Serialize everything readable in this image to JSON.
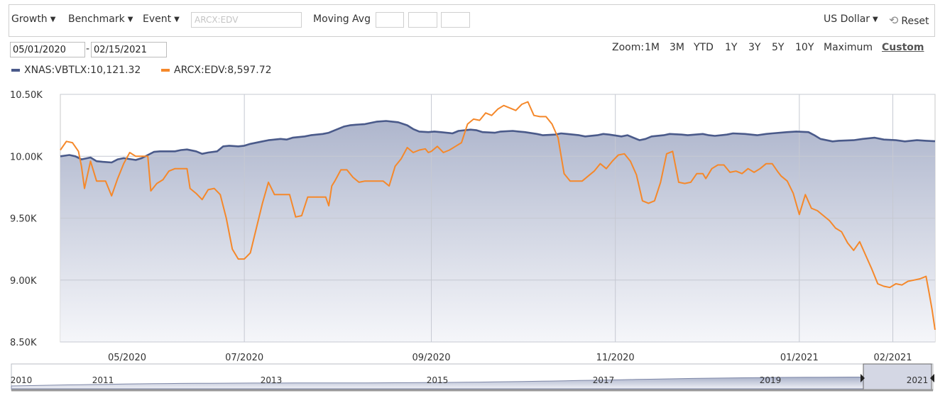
{
  "toolbar": {
    "growth": "Growth",
    "benchmark": "Benchmark",
    "event": "Event",
    "symbol_placeholder": "ARCX:EDV",
    "moving_avg": "Moving Avg",
    "currency": "US Dollar",
    "reset": "Reset"
  },
  "date_range": {
    "start": "05/01/2020",
    "end": "02/15/2021"
  },
  "zoom": {
    "label": "Zoom:",
    "options": [
      "1M",
      "3M",
      "YTD",
      "1Y",
      "3Y",
      "5Y",
      "10Y",
      "Maximum",
      "Custom"
    ],
    "active": "Custom"
  },
  "legend": [
    {
      "label": "XNAS:VBTLX:10,121.32",
      "color": "#4a5a8a"
    },
    {
      "label": "ARCX:EDV:8,597.72",
      "color": "#f5882a"
    }
  ],
  "navigator": {
    "years": [
      "2010",
      "2011",
      "2013",
      "2015",
      "2017",
      "2019",
      "2021"
    ]
  },
  "chart_data": {
    "type": "line",
    "x_start": "2020-05-01",
    "x_end": "2021-02-15",
    "xtick_labels": [
      {
        "date": "2020-05-01",
        "label": "05/2020"
      },
      {
        "date": "2020-07-01",
        "label": "07/2020"
      },
      {
        "date": "2020-09-01",
        "label": "09/2020"
      },
      {
        "date": "2020-11-01",
        "label": "11/2020"
      },
      {
        "date": "2021-01-01",
        "label": "01/2021"
      },
      {
        "date": "2021-02-01",
        "label": "02/2021"
      }
    ],
    "ylim": [
      8500,
      10500
    ],
    "yticks": [
      8500,
      9000,
      9500,
      10000,
      10500
    ],
    "ytick_labels": [
      "8.50K",
      "9.00K",
      "9.50K",
      "10.00K",
      "10.50K"
    ],
    "grid": true,
    "series": [
      {
        "name": "XNAS:VBTLX",
        "color": "#4a5a8a",
        "fill": true,
        "points": [
          [
            "2020-05-01",
            10000
          ],
          [
            "2020-05-04",
            10010
          ],
          [
            "2020-05-06",
            10000
          ],
          [
            "2020-05-08",
            9975
          ],
          [
            "2020-05-11",
            9990
          ],
          [
            "2020-05-13",
            9960
          ],
          [
            "2020-05-15",
            9955
          ],
          [
            "2020-05-18",
            9950
          ],
          [
            "2020-05-20",
            9975
          ],
          [
            "2020-05-22",
            9985
          ],
          [
            "2020-05-26",
            9970
          ],
          [
            "2020-05-28",
            9985
          ],
          [
            "2020-06-01",
            10035
          ],
          [
            "2020-06-03",
            10040
          ],
          [
            "2020-06-05",
            10040
          ],
          [
            "2020-06-08",
            10040
          ],
          [
            "2020-06-10",
            10050
          ],
          [
            "2020-06-12",
            10055
          ],
          [
            "2020-06-15",
            10040
          ],
          [
            "2020-06-17",
            10020
          ],
          [
            "2020-06-19",
            10030
          ],
          [
            "2020-06-22",
            10040
          ],
          [
            "2020-06-24",
            10080
          ],
          [
            "2020-06-26",
            10085
          ],
          [
            "2020-06-29",
            10080
          ],
          [
            "2020-07-01",
            10085
          ],
          [
            "2020-07-03",
            10100
          ],
          [
            "2020-07-07",
            10120
          ],
          [
            "2020-07-09",
            10130
          ],
          [
            "2020-07-13",
            10140
          ],
          [
            "2020-07-15",
            10135
          ],
          [
            "2020-07-17",
            10150
          ],
          [
            "2020-07-21",
            10160
          ],
          [
            "2020-07-23",
            10170
          ],
          [
            "2020-07-27",
            10180
          ],
          [
            "2020-07-29",
            10190
          ],
          [
            "2020-07-31",
            10210
          ],
          [
            "2020-08-03",
            10240
          ],
          [
            "2020-08-05",
            10250
          ],
          [
            "2020-08-07",
            10255
          ],
          [
            "2020-08-10",
            10260
          ],
          [
            "2020-08-12",
            10270
          ],
          [
            "2020-08-14",
            10280
          ],
          [
            "2020-08-17",
            10285
          ],
          [
            "2020-08-19",
            10280
          ],
          [
            "2020-08-21",
            10275
          ],
          [
            "2020-08-24",
            10250
          ],
          [
            "2020-08-26",
            10220
          ],
          [
            "2020-08-28",
            10200
          ],
          [
            "2020-08-31",
            10195
          ],
          [
            "2020-09-02",
            10200
          ],
          [
            "2020-09-04",
            10195
          ],
          [
            "2020-09-08",
            10185
          ],
          [
            "2020-09-10",
            10205
          ],
          [
            "2020-09-14",
            10215
          ],
          [
            "2020-09-16",
            10210
          ],
          [
            "2020-09-18",
            10195
          ],
          [
            "2020-09-22",
            10190
          ],
          [
            "2020-09-24",
            10200
          ],
          [
            "2020-09-28",
            10205
          ],
          [
            "2020-09-30",
            10200
          ],
          [
            "2020-10-02",
            10195
          ],
          [
            "2020-10-06",
            10180
          ],
          [
            "2020-10-08",
            10170
          ],
          [
            "2020-10-12",
            10175
          ],
          [
            "2020-10-14",
            10185
          ],
          [
            "2020-10-16",
            10180
          ],
          [
            "2020-10-20",
            10170
          ],
          [
            "2020-10-22",
            10160
          ],
          [
            "2020-10-26",
            10170
          ],
          [
            "2020-10-28",
            10180
          ],
          [
            "2020-10-30",
            10175
          ],
          [
            "2020-11-03",
            10160
          ],
          [
            "2020-11-05",
            10170
          ],
          [
            "2020-11-09",
            10130
          ],
          [
            "2020-11-11",
            10140
          ],
          [
            "2020-11-13",
            10160
          ],
          [
            "2020-11-17",
            10170
          ],
          [
            "2020-11-19",
            10180
          ],
          [
            "2020-11-23",
            10175
          ],
          [
            "2020-11-25",
            10170
          ],
          [
            "2020-11-30",
            10180
          ],
          [
            "2020-12-02",
            10170
          ],
          [
            "2020-12-04",
            10165
          ],
          [
            "2020-12-08",
            10175
          ],
          [
            "2020-12-10",
            10185
          ],
          [
            "2020-12-14",
            10180
          ],
          [
            "2020-12-16",
            10175
          ],
          [
            "2020-12-18",
            10170
          ],
          [
            "2020-12-21",
            10180
          ],
          [
            "2020-12-23",
            10185
          ],
          [
            "2020-12-28",
            10195
          ],
          [
            "2020-12-31",
            10200
          ],
          [
            "2021-01-04",
            10195
          ],
          [
            "2021-01-06",
            10170
          ],
          [
            "2021-01-08",
            10140
          ],
          [
            "2021-01-12",
            10120
          ],
          [
            "2021-01-14",
            10125
          ],
          [
            "2021-01-19",
            10130
          ],
          [
            "2021-01-22",
            10140
          ],
          [
            "2021-01-26",
            10150
          ],
          [
            "2021-01-29",
            10135
          ],
          [
            "2021-02-02",
            10130
          ],
          [
            "2021-02-05",
            10120
          ],
          [
            "2021-02-09",
            10130
          ],
          [
            "2021-02-12",
            10125
          ],
          [
            "2021-02-15",
            10121.32
          ]
        ]
      },
      {
        "name": "ARCX:EDV",
        "color": "#f5882a",
        "fill": false,
        "points": [
          [
            "2020-05-01",
            10050
          ],
          [
            "2020-05-03",
            10120
          ],
          [
            "2020-05-05",
            10110
          ],
          [
            "2020-05-07",
            10040
          ],
          [
            "2020-05-08",
            9920
          ],
          [
            "2020-05-09",
            9740
          ],
          [
            "2020-05-11",
            9960
          ],
          [
            "2020-05-13",
            9800
          ],
          [
            "2020-05-16",
            9800
          ],
          [
            "2020-05-18",
            9680
          ],
          [
            "2020-05-20",
            9820
          ],
          [
            "2020-05-22",
            9940
          ],
          [
            "2020-05-24",
            10030
          ],
          [
            "2020-05-26",
            10000
          ],
          [
            "2020-05-28",
            10000
          ],
          [
            "2020-05-30",
            10000
          ],
          [
            "2020-05-31",
            9720
          ],
          [
            "2020-06-02",
            9780
          ],
          [
            "2020-06-04",
            9810
          ],
          [
            "2020-06-06",
            9880
          ],
          [
            "2020-06-08",
            9900
          ],
          [
            "2020-06-10",
            9900
          ],
          [
            "2020-06-12",
            9900
          ],
          [
            "2020-06-13",
            9740
          ],
          [
            "2020-06-15",
            9700
          ],
          [
            "2020-06-17",
            9650
          ],
          [
            "2020-06-19",
            9730
          ],
          [
            "2020-06-21",
            9740
          ],
          [
            "2020-06-23",
            9690
          ],
          [
            "2020-06-25",
            9500
          ],
          [
            "2020-06-27",
            9250
          ],
          [
            "2020-06-29",
            9170
          ],
          [
            "2020-07-01",
            9170
          ],
          [
            "2020-07-03",
            9220
          ],
          [
            "2020-07-05",
            9420
          ],
          [
            "2020-07-07",
            9620
          ],
          [
            "2020-07-09",
            9790
          ],
          [
            "2020-07-11",
            9690
          ],
          [
            "2020-07-14",
            9690
          ],
          [
            "2020-07-16",
            9690
          ],
          [
            "2020-07-18",
            9510
          ],
          [
            "2020-07-20",
            9520
          ],
          [
            "2020-07-22",
            9670
          ],
          [
            "2020-07-24",
            9670
          ],
          [
            "2020-07-26",
            9670
          ],
          [
            "2020-07-28",
            9670
          ],
          [
            "2020-07-29",
            9600
          ],
          [
            "2020-07-30",
            9760
          ],
          [
            "2020-07-31",
            9800
          ],
          [
            "2020-08-02",
            9890
          ],
          [
            "2020-08-04",
            9890
          ],
          [
            "2020-08-06",
            9830
          ],
          [
            "2020-08-08",
            9790
          ],
          [
            "2020-08-10",
            9800
          ],
          [
            "2020-08-12",
            9800
          ],
          [
            "2020-08-14",
            9800
          ],
          [
            "2020-08-16",
            9800
          ],
          [
            "2020-08-18",
            9760
          ],
          [
            "2020-08-20",
            9920
          ],
          [
            "2020-08-22",
            9980
          ],
          [
            "2020-08-24",
            10070
          ],
          [
            "2020-08-26",
            10030
          ],
          [
            "2020-08-28",
            10050
          ],
          [
            "2020-08-30",
            10060
          ],
          [
            "2020-08-31",
            10030
          ],
          [
            "2020-09-01",
            10040
          ],
          [
            "2020-09-03",
            10080
          ],
          [
            "2020-09-05",
            10030
          ],
          [
            "2020-09-07",
            10050
          ],
          [
            "2020-09-09",
            10080
          ],
          [
            "2020-09-11",
            10110
          ],
          [
            "2020-09-13",
            10260
          ],
          [
            "2020-09-15",
            10300
          ],
          [
            "2020-09-17",
            10290
          ],
          [
            "2020-09-19",
            10350
          ],
          [
            "2020-09-21",
            10330
          ],
          [
            "2020-09-23",
            10380
          ],
          [
            "2020-09-25",
            10410
          ],
          [
            "2020-09-27",
            10390
          ],
          [
            "2020-09-29",
            10370
          ],
          [
            "2020-10-01",
            10420
          ],
          [
            "2020-10-03",
            10440
          ],
          [
            "2020-10-05",
            10330
          ],
          [
            "2020-10-07",
            10320
          ],
          [
            "2020-10-09",
            10320
          ],
          [
            "2020-10-11",
            10260
          ],
          [
            "2020-10-13",
            10150
          ],
          [
            "2020-10-15",
            9860
          ],
          [
            "2020-10-17",
            9800
          ],
          [
            "2020-10-19",
            9800
          ],
          [
            "2020-10-21",
            9800
          ],
          [
            "2020-10-23",
            9840
          ],
          [
            "2020-10-25",
            9880
          ],
          [
            "2020-10-27",
            9940
          ],
          [
            "2020-10-29",
            9900
          ],
          [
            "2020-10-31",
            9960
          ],
          [
            "2020-11-02",
            10010
          ],
          [
            "2020-11-04",
            10020
          ],
          [
            "2020-11-06",
            9960
          ],
          [
            "2020-11-08",
            9850
          ],
          [
            "2020-11-10",
            9640
          ],
          [
            "2020-11-12",
            9620
          ],
          [
            "2020-11-14",
            9640
          ],
          [
            "2020-11-16",
            9790
          ],
          [
            "2020-11-18",
            10020
          ],
          [
            "2020-11-20",
            10040
          ],
          [
            "2020-11-22",
            9790
          ],
          [
            "2020-11-24",
            9780
          ],
          [
            "2020-11-26",
            9790
          ],
          [
            "2020-11-28",
            9860
          ],
          [
            "2020-11-30",
            9860
          ],
          [
            "2020-12-01",
            9820
          ],
          [
            "2020-12-03",
            9900
          ],
          [
            "2020-12-05",
            9930
          ],
          [
            "2020-12-07",
            9930
          ],
          [
            "2020-12-09",
            9870
          ],
          [
            "2020-12-11",
            9880
          ],
          [
            "2020-12-13",
            9860
          ],
          [
            "2020-12-15",
            9900
          ],
          [
            "2020-12-17",
            9870
          ],
          [
            "2020-12-19",
            9900
          ],
          [
            "2020-12-21",
            9940
          ],
          [
            "2020-12-23",
            9940
          ],
          [
            "2020-12-25",
            9870
          ],
          [
            "2020-12-26",
            9840
          ],
          [
            "2020-12-28",
            9800
          ],
          [
            "2020-12-30",
            9700
          ],
          [
            "2021-01-01",
            9530
          ],
          [
            "2021-01-03",
            9690
          ],
          [
            "2021-01-05",
            9580
          ],
          [
            "2021-01-07",
            9560
          ],
          [
            "2021-01-09",
            9520
          ],
          [
            "2021-01-11",
            9480
          ],
          [
            "2021-01-13",
            9420
          ],
          [
            "2021-01-15",
            9390
          ],
          [
            "2021-01-17",
            9300
          ],
          [
            "2021-01-19",
            9240
          ],
          [
            "2021-01-21",
            9310
          ],
          [
            "2021-01-23",
            9200
          ],
          [
            "2021-01-25",
            9090
          ],
          [
            "2021-01-27",
            8970
          ],
          [
            "2021-01-29",
            8950
          ],
          [
            "2021-01-31",
            8940
          ],
          [
            "2021-02-02",
            8970
          ],
          [
            "2021-02-04",
            8960
          ],
          [
            "2021-02-06",
            8990
          ],
          [
            "2021-02-08",
            9000
          ],
          [
            "2021-02-10",
            9010
          ],
          [
            "2021-02-11",
            9020
          ],
          [
            "2021-02-12",
            9030
          ],
          [
            "2021-02-13",
            8900
          ],
          [
            "2021-02-14",
            8760
          ],
          [
            "2021-02-15",
            8597.72
          ]
        ]
      }
    ]
  }
}
